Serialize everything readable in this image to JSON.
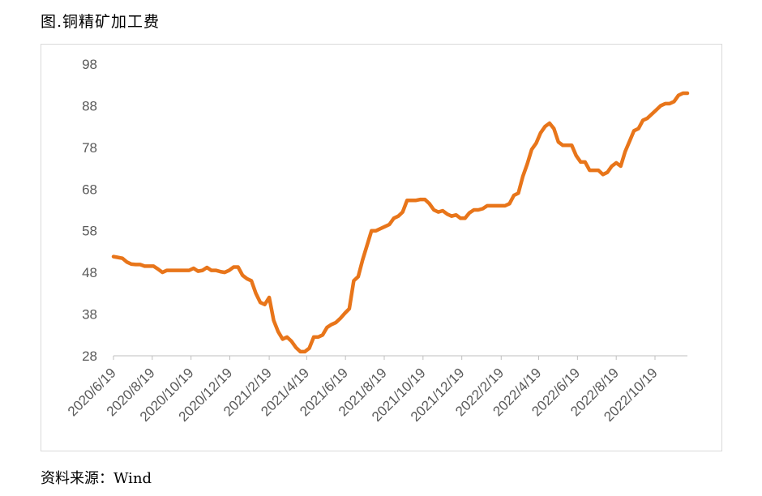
{
  "page": {
    "title": "图.铜精矿加工费",
    "source": "资料来源：Wind"
  },
  "chart_data": {
    "type": "line",
    "title": "",
    "xlabel": "",
    "ylabel": "",
    "ylim": [
      28,
      98
    ],
    "yticks": [
      28,
      38,
      48,
      58,
      68,
      78,
      88,
      98
    ],
    "xlim": [
      "2020-06-19",
      "2022-12-09"
    ],
    "xticks": [
      "2020/6/19",
      "2020/8/19",
      "2020/10/19",
      "2020/12/19",
      "2021/2/19",
      "2021/4/19",
      "2021/6/19",
      "2021/8/19",
      "2021/10/19",
      "2021/12/19",
      "2022/2/19",
      "2022/4/19",
      "2022/6/19",
      "2022/8/19",
      "2022/10/19"
    ],
    "grid": false,
    "legend": "none",
    "color": "#E8751A",
    "series": [
      {
        "x": [
          "2020-06-19",
          "2020-06-26",
          "2020-07-03",
          "2020-07-10",
          "2020-07-17",
          "2020-07-24",
          "2020-07-31",
          "2020-08-07",
          "2020-08-14",
          "2020-08-21",
          "2020-08-28",
          "2020-09-04",
          "2020-09-11",
          "2020-09-18",
          "2020-09-25",
          "2020-10-09",
          "2020-10-16",
          "2020-10-23",
          "2020-10-30",
          "2020-11-06",
          "2020-11-13",
          "2020-11-20",
          "2020-11-27",
          "2020-12-04",
          "2020-12-11",
          "2020-12-18",
          "2020-12-25",
          "2021-01-01",
          "2021-01-08",
          "2021-01-15",
          "2021-01-22",
          "2021-01-29",
          "2021-02-05",
          "2021-02-12",
          "2021-02-19",
          "2021-02-26",
          "2021-03-05",
          "2021-03-12",
          "2021-03-19",
          "2021-03-26",
          "2021-04-02",
          "2021-04-09",
          "2021-04-16",
          "2021-04-23",
          "2021-04-30",
          "2021-05-07",
          "2021-05-14",
          "2021-05-21",
          "2021-05-28",
          "2021-06-04",
          "2021-06-11",
          "2021-06-18",
          "2021-06-25",
          "2021-07-02",
          "2021-07-09",
          "2021-07-16",
          "2021-07-23",
          "2021-07-30",
          "2021-08-06",
          "2021-08-13",
          "2021-08-20",
          "2021-08-27",
          "2021-09-03",
          "2021-09-10",
          "2021-09-17",
          "2021-09-24",
          "2021-10-08",
          "2021-10-15",
          "2021-10-22",
          "2021-10-29",
          "2021-11-05",
          "2021-11-12",
          "2021-11-19",
          "2021-11-26",
          "2021-12-03",
          "2021-12-10",
          "2021-12-17",
          "2021-12-24",
          "2021-12-31",
          "2022-01-07",
          "2022-01-14",
          "2022-01-21",
          "2022-01-28",
          "2022-02-04",
          "2022-02-11",
          "2022-02-18",
          "2022-02-25",
          "2022-03-04",
          "2022-03-11",
          "2022-03-18",
          "2022-03-25",
          "2022-04-01",
          "2022-04-08",
          "2022-04-15",
          "2022-04-22",
          "2022-04-29",
          "2022-05-06",
          "2022-05-13",
          "2022-05-20",
          "2022-05-27",
          "2022-06-03",
          "2022-06-10",
          "2022-06-17",
          "2022-06-24",
          "2022-07-01",
          "2022-07-08",
          "2022-07-15",
          "2022-07-22",
          "2022-07-29",
          "2022-08-05",
          "2022-08-12",
          "2022-08-19",
          "2022-08-26",
          "2022-09-02",
          "2022-09-09",
          "2022-09-16",
          "2022-09-23",
          "2022-09-30",
          "2022-10-07",
          "2022-10-14",
          "2022-10-21",
          "2022-10-28",
          "2022-11-04",
          "2022-11-11",
          "2022-11-18",
          "2022-11-25",
          "2022-12-02",
          "2022-12-09"
        ],
        "values": [
          51.8,
          51.6,
          51.4,
          50.5,
          50.0,
          49.9,
          49.9,
          49.5,
          49.5,
          49.5,
          48.8,
          48.0,
          48.5,
          48.5,
          48.5,
          48.5,
          48.5,
          49.0,
          48.3,
          48.5,
          49.2,
          48.5,
          48.5,
          48.2,
          48.0,
          48.5,
          49.3,
          49.3,
          47.3,
          46.5,
          46.0,
          43.0,
          40.8,
          40.3,
          42.0,
          36.5,
          33.8,
          32.0,
          32.5,
          31.5,
          30.0,
          29.0,
          29.0,
          29.8,
          32.5,
          32.5,
          33.0,
          34.8,
          35.5,
          36.0,
          37.0,
          38.2,
          39.3,
          46.0,
          47.0,
          51.0,
          54.5,
          58.0,
          58.0,
          58.5,
          59.0,
          59.5,
          61.0,
          61.5,
          62.5,
          65.3,
          65.3,
          65.5,
          65.5,
          64.5,
          63.0,
          62.5,
          62.8,
          62.0,
          61.5,
          61.8,
          61.0,
          61.0,
          62.3,
          63.0,
          63.0,
          63.3,
          64.0,
          64.0,
          64.0,
          64.0,
          64.0,
          64.5,
          66.5,
          67.0,
          71.0,
          74.0,
          77.5,
          79.0,
          81.5,
          83.0,
          83.8,
          82.5,
          79.3,
          78.5,
          78.5,
          78.5,
          76.0,
          74.5,
          74.5,
          72.5,
          72.5,
          72.5,
          71.5,
          72.0,
          73.5,
          74.3,
          73.5,
          77.0,
          79.5,
          82.0,
          82.5,
          84.5,
          85.0,
          86.0,
          87.0,
          88.0,
          88.5,
          88.5,
          89.0,
          90.5,
          91.0,
          91.0
        ]
      }
    ]
  }
}
